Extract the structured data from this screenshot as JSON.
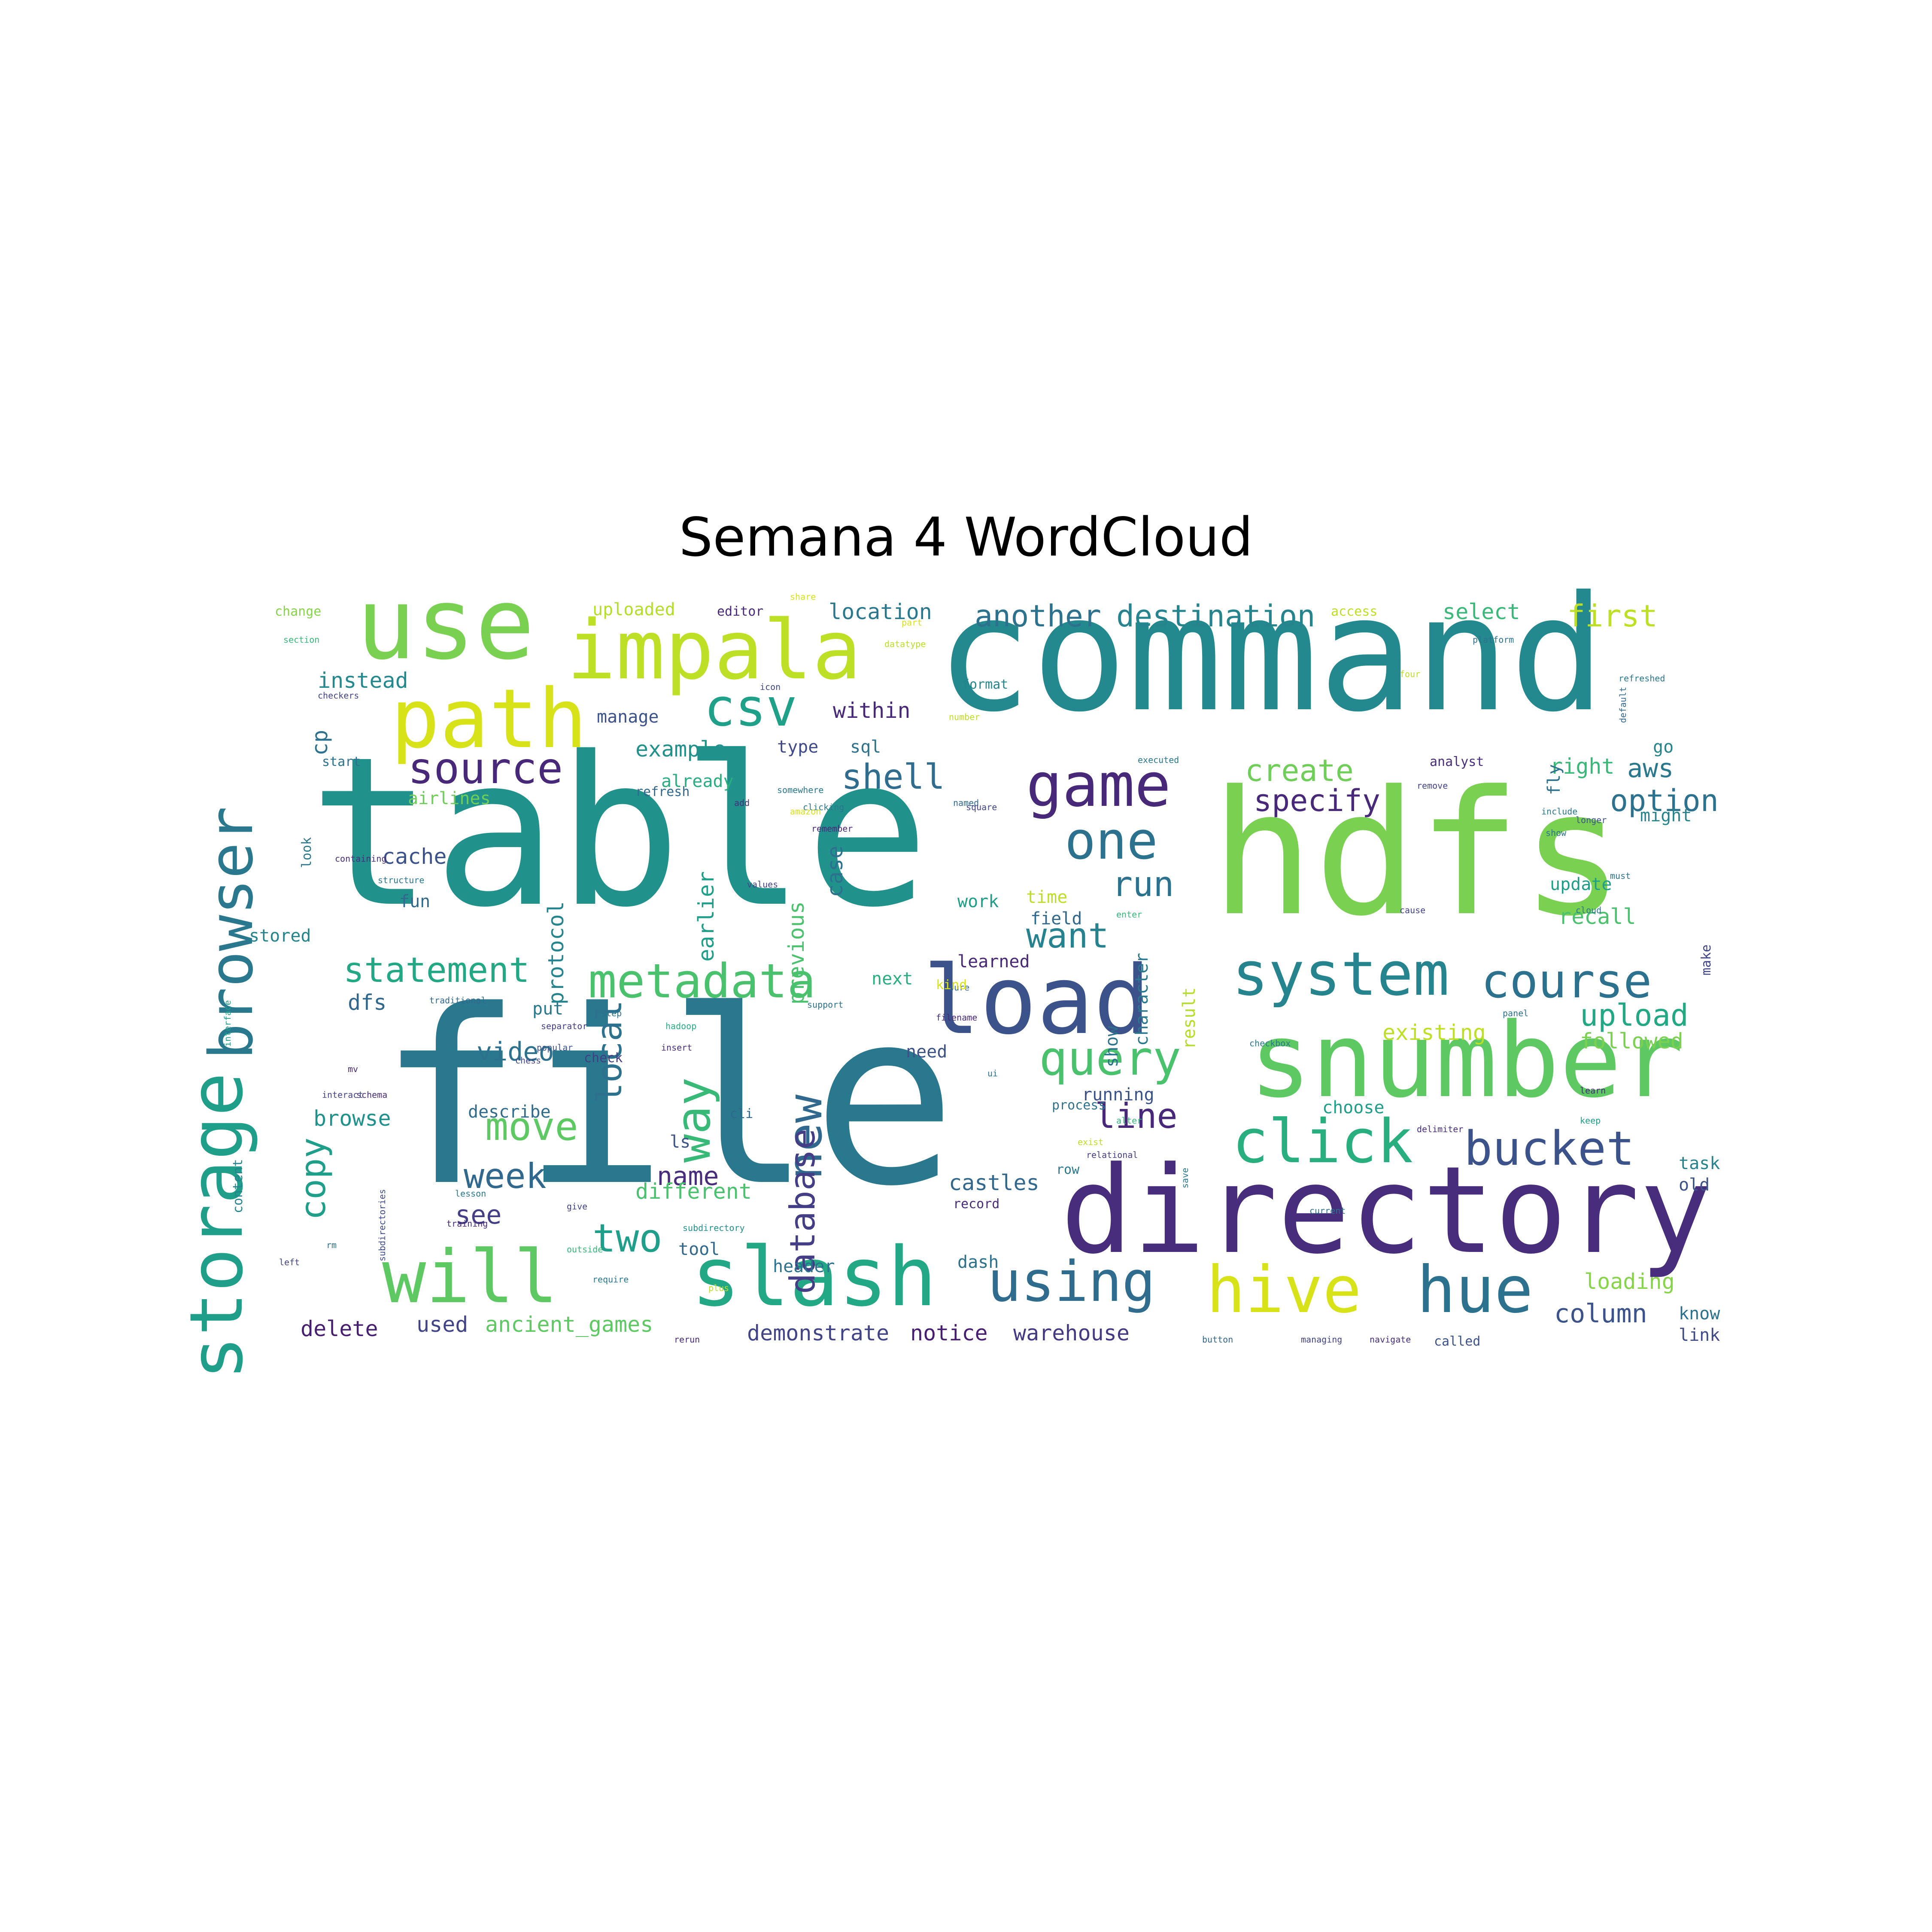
{
  "title": "Semana 4 WordCloud",
  "palette": {
    "purple": "#482878",
    "indigo": "#3e4a89",
    "blue": "#31688e",
    "teal": "#26828e",
    "green_teal": "#1f9e89",
    "green": "#35b779",
    "light_green": "#6ece58",
    "lime": "#b5de2b",
    "yellow": "#e0e31a"
  },
  "words": [
    {
      "text": "file",
      "color": "#2a788e"
    },
    {
      "text": "table",
      "color": "#21918c"
    },
    {
      "text": "command",
      "color": "#23898e"
    },
    {
      "text": "hdfs",
      "color": "#7ad151"
    },
    {
      "text": "directory",
      "color": "#472d7b"
    },
    {
      "text": "snumber",
      "color": "#5ec962"
    },
    {
      "text": "load",
      "color": "#3b528b"
    },
    {
      "text": "use",
      "color": "#7ad151"
    },
    {
      "text": "impala",
      "color": "#bddf26"
    },
    {
      "text": "path",
      "color": "#d8e219"
    },
    {
      "text": "storage",
      "color": "#1f9e89"
    },
    {
      "text": "browser",
      "color": "#2a788e"
    },
    {
      "text": "slash",
      "color": "#22a884"
    },
    {
      "text": "will",
      "color": "#5ec962"
    },
    {
      "text": "hive",
      "color": "#d8e219"
    },
    {
      "text": "hue",
      "color": "#2c728e"
    },
    {
      "text": "using",
      "color": "#2f6c8e"
    },
    {
      "text": "game",
      "color": "#482878"
    },
    {
      "text": "system",
      "color": "#25848e"
    },
    {
      "text": "click",
      "color": "#29af7f"
    },
    {
      "text": "one",
      "color": "#2c728e"
    },
    {
      "text": "csv",
      "color": "#1fa088"
    },
    {
      "text": "source",
      "color": "#482878"
    },
    {
      "text": "metadata",
      "color": "#4ac16d"
    },
    {
      "text": "query",
      "color": "#4ac16d"
    },
    {
      "text": "course",
      "color": "#2c728e"
    },
    {
      "text": "bucket",
      "color": "#3b528b"
    },
    {
      "text": "new",
      "color": "#31688e"
    },
    {
      "text": "way",
      "color": "#38b977"
    },
    {
      "text": "database",
      "color": "#433e85"
    },
    {
      "text": "local",
      "color": "#2c728e"
    },
    {
      "text": "shell",
      "color": "#2f6c8e"
    },
    {
      "text": "statement",
      "color": "#22a884"
    },
    {
      "text": "move",
      "color": "#5ec962"
    },
    {
      "text": "copy",
      "color": "#1f9e89"
    },
    {
      "text": "week",
      "color": "#31688e"
    },
    {
      "text": "two",
      "color": "#1f9e89"
    },
    {
      "text": "run",
      "color": "#2c728e"
    },
    {
      "text": "want",
      "color": "#26828e"
    },
    {
      "text": "line",
      "color": "#482878"
    },
    {
      "text": "create",
      "color": "#6ece58"
    },
    {
      "text": "specify",
      "color": "#482878"
    },
    {
      "text": "another",
      "color": "#2c728e"
    },
    {
      "text": "destination",
      "color": "#25848e"
    },
    {
      "text": "first",
      "color": "#bddf26"
    },
    {
      "text": "upload",
      "color": "#22a884"
    },
    {
      "text": "option",
      "color": "#2c728e"
    },
    {
      "text": "aws",
      "color": "#2a788e"
    },
    {
      "text": "name",
      "color": "#472d7b"
    },
    {
      "text": "column",
      "color": "#3b528b"
    },
    {
      "text": "warehouse",
      "color": "#443983"
    },
    {
      "text": "demonstrate",
      "color": "#414487"
    },
    {
      "text": "notice",
      "color": "#481f70"
    },
    {
      "text": "ancient_games",
      "color": "#5ec962"
    },
    {
      "text": "delete",
      "color": "#481f70"
    },
    {
      "text": "used",
      "color": "#414487"
    },
    {
      "text": "loading",
      "color": "#86d549"
    },
    {
      "text": "recall",
      "color": "#4ac16d"
    },
    {
      "text": "existing",
      "color": "#bddf26"
    },
    {
      "text": "followed",
      "color": "#7ad151"
    },
    {
      "text": "video",
      "color": "#2c728e"
    },
    {
      "text": "dfs",
      "color": "#31688e"
    },
    {
      "text": "put",
      "color": "#2a788e"
    },
    {
      "text": "see",
      "color": "#433e85"
    },
    {
      "text": "describe",
      "color": "#2f6c8e"
    },
    {
      "text": "browse",
      "color": "#21918c"
    },
    {
      "text": "cache",
      "color": "#3b528b"
    },
    {
      "text": "fun",
      "color": "#31688e"
    },
    {
      "text": "stored",
      "color": "#25848e"
    },
    {
      "text": "instead",
      "color": "#23898e"
    },
    {
      "text": "cp",
      "color": "#2c728e"
    },
    {
      "text": "location",
      "color": "#2a788e"
    },
    {
      "text": "uploaded",
      "color": "#b5de2b"
    },
    {
      "text": "select",
      "color": "#38b977"
    },
    {
      "text": "within",
      "color": "#482878"
    },
    {
      "text": "manage",
      "color": "#3b528b"
    },
    {
      "text": "example",
      "color": "#21918c"
    },
    {
      "text": "type",
      "color": "#3e4a89"
    },
    {
      "text": "sql",
      "color": "#2c728e"
    },
    {
      "text": "already",
      "color": "#29af7f"
    },
    {
      "text": "refresh",
      "color": "#31688e"
    },
    {
      "text": "earlier",
      "color": "#1f9e89"
    },
    {
      "text": "previous",
      "color": "#4ac16d"
    },
    {
      "text": "case",
      "color": "#2c728e"
    },
    {
      "text": "protocol",
      "color": "#25848e"
    },
    {
      "text": "airlines",
      "color": "#6ece58"
    },
    {
      "text": "work",
      "color": "#1f9e89"
    },
    {
      "text": "time",
      "color": "#bddf26"
    },
    {
      "text": "field",
      "color": "#31688e"
    },
    {
      "text": "character",
      "color": "#2a788e"
    },
    {
      "text": "result",
      "color": "#b5de2b"
    },
    {
      "text": "show",
      "color": "#2c728e"
    },
    {
      "text": "next",
      "color": "#29af7f"
    },
    {
      "text": "learned",
      "color": "#482878"
    },
    {
      "text": "need",
      "color": "#3b528b"
    },
    {
      "text": "check",
      "color": "#433e85"
    },
    {
      "text": "running",
      "color": "#3b528b"
    },
    {
      "text": "choose",
      "color": "#1f9e89"
    },
    {
      "text": "castles",
      "color": "#31688e"
    },
    {
      "text": "record",
      "color": "#472d7b"
    },
    {
      "text": "row",
      "color": "#2a788e"
    },
    {
      "text": "different",
      "color": "#4ac16d"
    },
    {
      "text": "ls",
      "color": "#3b528b"
    },
    {
      "text": "tool",
      "color": "#31688e"
    },
    {
      "text": "header",
      "color": "#2c728e"
    },
    {
      "text": "dash",
      "color": "#2c728e"
    },
    {
      "text": "right",
      "color": "#38b977"
    },
    {
      "text": "might",
      "color": "#25848e"
    },
    {
      "text": "update",
      "color": "#1f9e89"
    },
    {
      "text": "fly",
      "color": "#2c728e"
    },
    {
      "text": "format",
      "color": "#25848e"
    },
    {
      "text": "editor",
      "color": "#482878"
    },
    {
      "text": "access",
      "color": "#bddf26"
    },
    {
      "text": "go",
      "color": "#25848e"
    },
    {
      "text": "task",
      "color": "#25848e"
    },
    {
      "text": "old",
      "color": "#3b528b"
    },
    {
      "text": "know",
      "color": "#2c728e"
    },
    {
      "text": "link",
      "color": "#3e4a89"
    },
    {
      "text": "called",
      "color": "#3b528b"
    },
    {
      "text": "make",
      "color": "#414487"
    },
    {
      "text": "change",
      "color": "#86d549"
    },
    {
      "text": "section",
      "color": "#35b779"
    },
    {
      "text": "checkers",
      "color": "#414487"
    },
    {
      "text": "start",
      "color": "#2c728e"
    },
    {
      "text": "look",
      "color": "#2a788e"
    },
    {
      "text": "containing",
      "color": "#472d7b"
    },
    {
      "text": "structure",
      "color": "#2a788e"
    },
    {
      "text": "interface",
      "color": "#1f9e89"
    },
    {
      "text": "content",
      "color": "#25848e"
    },
    {
      "text": "left",
      "color": "#414487"
    },
    {
      "text": "rm",
      "color": "#2c728e"
    },
    {
      "text": "mv",
      "color": "#482878"
    },
    {
      "text": "schema",
      "color": "#472d7b"
    },
    {
      "text": "interact",
      "color": "#414487"
    },
    {
      "text": "separator",
      "color": "#433e85"
    },
    {
      "text": "popular",
      "color": "#3b528b"
    },
    {
      "text": "traditional",
      "color": "#31688e"
    },
    {
      "text": "step",
      "color": "#2c728e"
    },
    {
      "text": "hadoop",
      "color": "#29af7f"
    },
    {
      "text": "chess",
      "color": "#414487"
    },
    {
      "text": "insert",
      "color": "#472d7b"
    },
    {
      "text": "cli",
      "color": "#31688e"
    },
    {
      "text": "lesson",
      "color": "#2a788e"
    },
    {
      "text": "give",
      "color": "#414487"
    },
    {
      "text": "training",
      "color": "#482878"
    },
    {
      "text": "outside",
      "color": "#35b779"
    },
    {
      "text": "require",
      "color": "#2a788e"
    },
    {
      "text": "plus",
      "color": "#bddf26"
    },
    {
      "text": "rerun",
      "color": "#482878"
    },
    {
      "text": "subdirectory",
      "color": "#21918c"
    },
    {
      "text": "subdirectories",
      "color": "#3e4a89"
    },
    {
      "text": "button",
      "color": "#31688e"
    },
    {
      "text": "managing",
      "color": "#414487"
    },
    {
      "text": "navigate",
      "color": "#472d7b"
    },
    {
      "text": "support",
      "color": "#2c728e"
    },
    {
      "text": "sure",
      "color": "#31688e"
    },
    {
      "text": "filename",
      "color": "#482878"
    },
    {
      "text": "delimiter",
      "color": "#472d7b"
    },
    {
      "text": "relational",
      "color": "#433e85"
    },
    {
      "text": "checkbox",
      "color": "#2a788e"
    },
    {
      "text": "panel",
      "color": "#2c728e"
    },
    {
      "text": "learn",
      "color": "#482878"
    },
    {
      "text": "keep",
      "color": "#1f9e89"
    },
    {
      "text": "cloud",
      "color": "#2a788e"
    },
    {
      "text": "cause",
      "color": "#414487"
    },
    {
      "text": "must",
      "color": "#2c728e"
    },
    {
      "text": "longer",
      "color": "#3b528b"
    },
    {
      "text": "include",
      "color": "#2a788e"
    },
    {
      "text": "refreshed",
      "color": "#2a788e"
    },
    {
      "text": "platform",
      "color": "#2c728e"
    },
    {
      "text": "four",
      "color": "#bddf26"
    },
    {
      "text": "remove",
      "color": "#414487"
    },
    {
      "text": "analyst",
      "color": "#472d7b"
    },
    {
      "text": "default",
      "color": "#31688e"
    },
    {
      "text": "remember",
      "color": "#482878"
    },
    {
      "text": "clicking",
      "color": "#2a788e"
    },
    {
      "text": "somewhere",
      "color": "#2a788e"
    },
    {
      "text": "values",
      "color": "#414487"
    },
    {
      "text": "icon",
      "color": "#3e4a89"
    },
    {
      "text": "add",
      "color": "#472d7b"
    },
    {
      "text": "share",
      "color": "#d8e219"
    },
    {
      "text": "part",
      "color": "#d8e219"
    },
    {
      "text": "datatype",
      "color": "#bddf26"
    },
    {
      "text": "amazon",
      "color": "#d8e219"
    },
    {
      "text": "number",
      "color": "#bddf26"
    },
    {
      "text": "named",
      "color": "#31688e"
    },
    {
      "text": "square",
      "color": "#414487"
    },
    {
      "text": "executed",
      "color": "#2a788e"
    },
    {
      "text": "current",
      "color": "#2c728e"
    },
    {
      "text": "process",
      "color": "#2c728e"
    },
    {
      "text": "ui",
      "color": "#2c728e"
    },
    {
      "text": "save",
      "color": "#2a788e"
    },
    {
      "text": "alter",
      "color": "#35b779"
    },
    {
      "text": "exist",
      "color": "#bddf26"
    },
    {
      "text": "enter",
      "color": "#35b779"
    },
    {
      "text": "kind",
      "color": "#d8e219"
    },
    {
      "text": "show",
      "color": "#2c728e"
    }
  ]
}
